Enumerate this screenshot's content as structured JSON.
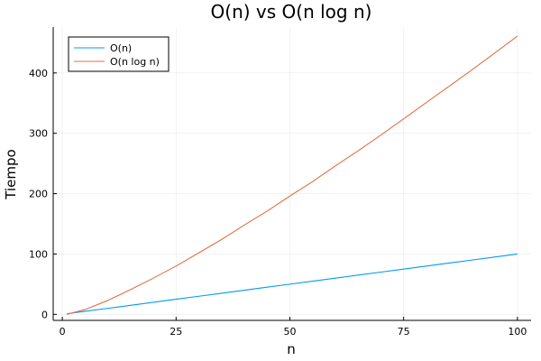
{
  "chart_data": {
    "type": "line",
    "title": "O(n) vs O(n log n)",
    "xlabel": "n",
    "ylabel": "Tiempo",
    "xlim": [
      -2,
      103
    ],
    "ylim": [
      -10,
      476
    ],
    "xticks": [
      0,
      25,
      50,
      75,
      100
    ],
    "yticks": [
      0,
      100,
      200,
      300,
      400
    ],
    "grid": true,
    "legend_position": "top-left",
    "x": [
      1,
      5,
      10,
      15,
      20,
      25,
      30,
      35,
      40,
      45,
      50,
      55,
      60,
      65,
      70,
      75,
      80,
      85,
      90,
      95,
      100
    ],
    "series": [
      {
        "name": "O(n)",
        "color": "#009AFA",
        "values": [
          1,
          5,
          10,
          15,
          20,
          25,
          30,
          35,
          40,
          45,
          50,
          55,
          60,
          65,
          70,
          75,
          80,
          85,
          90,
          95,
          100
        ]
      },
      {
        "name": "O(n log n)",
        "color": "#E26F46",
        "values": [
          0,
          8,
          23,
          41,
          60,
          80,
          102,
          124,
          148,
          171,
          196,
          220,
          246,
          271,
          297,
          324,
          351,
          378,
          405,
          433,
          461
        ]
      }
    ]
  }
}
